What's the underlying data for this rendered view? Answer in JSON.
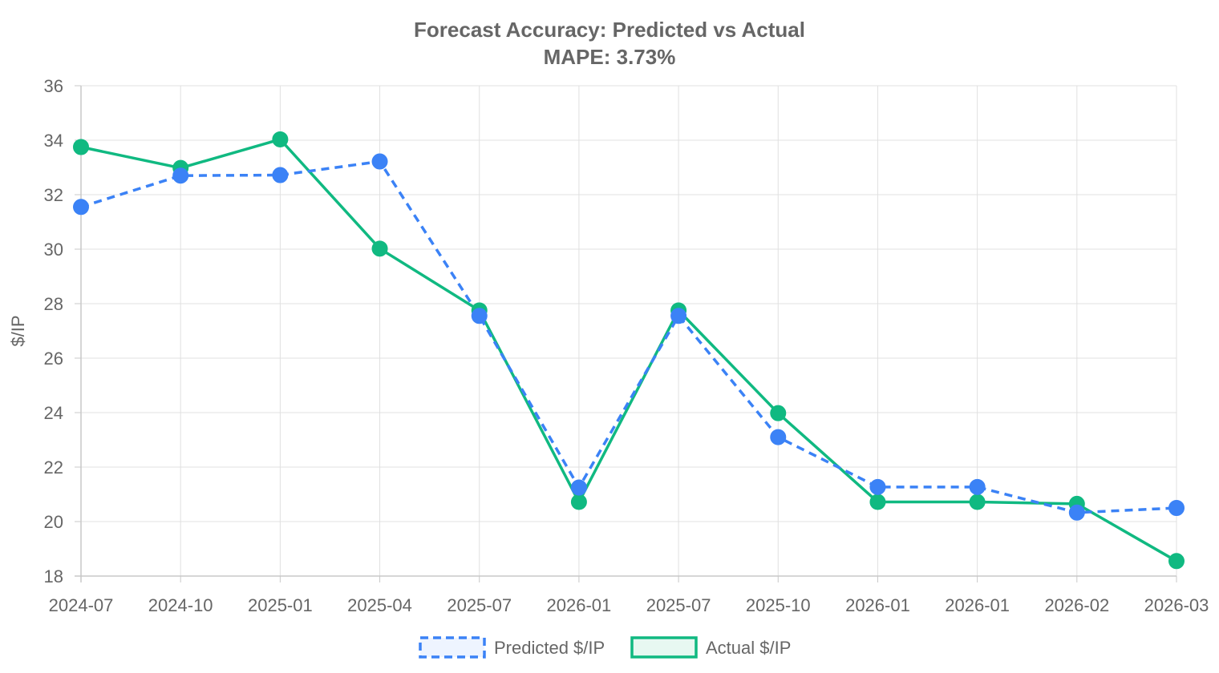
{
  "chart_data": {
    "type": "line",
    "title": "Forecast Accuracy: Predicted vs Actual",
    "subtitle": "MAPE: 3.73%",
    "xlabel": "",
    "ylabel": "$/IP",
    "categories": [
      "2024-07",
      "2024-10",
      "2025-01",
      "2025-04",
      "2025-07",
      "2026-01",
      "2025-07",
      "2025-10",
      "2026-01",
      "2026-01",
      "2026-02",
      "2026-03"
    ],
    "ylim": [
      18,
      36
    ],
    "yticks": [
      18,
      20,
      22,
      24,
      26,
      28,
      30,
      32,
      34,
      36
    ],
    "grid": true,
    "legend_position": "bottom",
    "series": [
      {
        "name": "Predicted $/IP",
        "style": "dashed",
        "color": "#3b82f6",
        "values": [
          31.55,
          32.7,
          32.72,
          33.22,
          27.55,
          21.25,
          27.55,
          23.1,
          21.27,
          21.27,
          20.33,
          20.5
        ]
      },
      {
        "name": "Actual $/IP",
        "style": "solid",
        "color": "#10b981",
        "values": [
          33.75,
          32.98,
          34.03,
          30.02,
          27.75,
          20.72,
          27.75,
          23.98,
          20.72,
          20.72,
          20.65,
          18.55
        ]
      }
    ]
  }
}
